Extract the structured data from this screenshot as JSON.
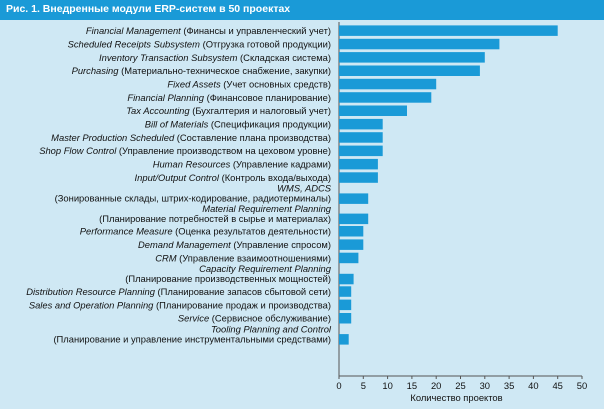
{
  "title": "Рис. 1. Внедренные модули ERP-систем в 50 проектах",
  "chart_data": {
    "type": "bar",
    "orientation": "horizontal",
    "title": "Рис. 1. Внедренные модули ERP-систем в 50 проектах",
    "xlabel": "Количество проектов",
    "ylabel": "",
    "xlim": [
      0,
      50
    ],
    "xticks": [
      "0",
      "5",
      "10",
      "15",
      "20",
      "25",
      "30",
      "35",
      "40",
      "45",
      "50"
    ],
    "grid": false,
    "bar_color": "#1a9ad7",
    "background": "#cfe8f4",
    "categories": [
      {
        "en": "Financial Management",
        "ru": " (Финансы и управленческий учет)",
        "lines": 1
      },
      {
        "en": "Scheduled Receipts Subsystem",
        "ru": " (Отгрузка готовой продукции)",
        "lines": 1
      },
      {
        "en": "Inventory Transaction Subsystem",
        "ru": " (Складская система)",
        "lines": 1
      },
      {
        "en": "Purchasing",
        "ru": " (Материально-техническое снабжение, закупки)",
        "lines": 1
      },
      {
        "en": "Fixed Assets",
        "ru": " (Учет основных средств)",
        "lines": 1
      },
      {
        "en": "Financial Planning",
        "ru": " (Финансовое планирование)",
        "lines": 1
      },
      {
        "en": "Tax Accounting",
        "ru": " (Бухгалтерия и налоговый учет)",
        "lines": 1
      },
      {
        "en": "Bill of Materials",
        "ru": " (Спецификация продукции)",
        "lines": 1
      },
      {
        "en": "Master Production Scheduled",
        "ru": " (Составление плана производства)",
        "lines": 1
      },
      {
        "en": "Shop Flow Control",
        "ru": " (Управление производством на цеховом уровне)",
        "lines": 1
      },
      {
        "en": "Human Resources",
        "ru": " (Управление кадрами)",
        "lines": 1
      },
      {
        "en": "Input/Output Control",
        "ru": " (Контроль входа/выхода)",
        "lines": 1
      },
      {
        "en": "WMS, ADCS",
        "ru": "(Зонированные склады, штрих-кодирование, радиотерминалы)",
        "lines": 2
      },
      {
        "en": "Material Requirement Planning",
        "ru": "(Планирование потребностей в сырье и материалах)",
        "lines": 2
      },
      {
        "en": "Performance Measure",
        "ru": " (Оценка результатов деятельности)",
        "lines": 1
      },
      {
        "en": "Demand Management",
        "ru": " (Управление спросом)",
        "lines": 1
      },
      {
        "en": "CRM",
        "ru": " (Управление взаимоотношениями)",
        "lines": 1
      },
      {
        "en": "Capacity Requirement Planning",
        "ru": "(Планирование производственных мощностей)",
        "lines": 2
      },
      {
        "en": "Distribution Resource Planning",
        "ru": " (Планирование запасов сбытовой сети)",
        "lines": 1
      },
      {
        "en": "Sales and Operation Planning",
        "ru": " (Планирование продаж и производства)",
        "lines": 1
      },
      {
        "en": "Service",
        "ru": " (Сервисное обслуживание)",
        "lines": 1
      },
      {
        "en": "Tooling Planning and Control",
        "ru": "(Планирование и управление инструментальными средствами)",
        "lines": 2
      }
    ],
    "values": [
      45,
      33,
      30,
      29,
      20,
      19,
      14,
      9,
      9,
      9,
      8,
      8,
      6,
      6,
      5,
      5,
      4,
      3,
      2.5,
      2.5,
      2.5,
      2
    ]
  }
}
